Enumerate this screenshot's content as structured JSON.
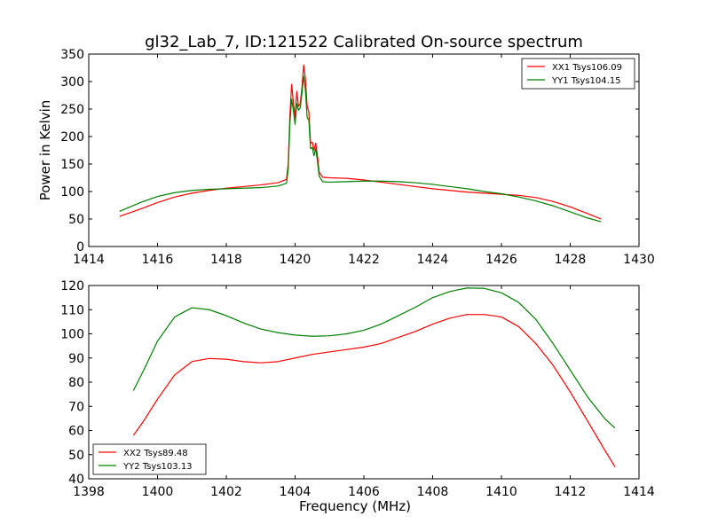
{
  "title": "gl32_Lab_7, ID:121522 Calibrated On-source spectrum",
  "colors": {
    "xx": "#ff0000",
    "yy": "#008000"
  },
  "chart_data": [
    {
      "type": "line",
      "title": "gl32_Lab_7, ID:121522 Calibrated On-source spectrum",
      "xlabel": "",
      "ylabel": "Power in Kelvin",
      "xlim": [
        1414,
        1430
      ],
      "ylim": [
        0,
        350
      ],
      "xticks": [
        1414,
        1416,
        1418,
        1420,
        1422,
        1424,
        1426,
        1428,
        1430
      ],
      "yticks": [
        0,
        50,
        100,
        150,
        200,
        250,
        300,
        350
      ],
      "grid": false,
      "legend_position": "top-right",
      "series": [
        {
          "name": "XX1 Tsys106.09",
          "color": "#ff0000",
          "x": [
            1414.9,
            1415.5,
            1416.0,
            1416.5,
            1417.0,
            1417.5,
            1418.0,
            1418.5,
            1419.0,
            1419.5,
            1419.75,
            1419.8,
            1419.85,
            1419.9,
            1419.95,
            1420.0,
            1420.05,
            1420.1,
            1420.15,
            1420.2,
            1420.25,
            1420.3,
            1420.35,
            1420.4,
            1420.45,
            1420.5,
            1420.55,
            1420.6,
            1420.65,
            1420.7,
            1420.8,
            1421.0,
            1421.5,
            1422.0,
            1422.5,
            1423.0,
            1423.5,
            1424.0,
            1424.5,
            1425.0,
            1425.5,
            1426.0,
            1426.5,
            1427.0,
            1427.5,
            1428.0,
            1428.5,
            1428.9
          ],
          "values": [
            55,
            68,
            80,
            90,
            97,
            102,
            106,
            109,
            112,
            116,
            122,
            150,
            240,
            295,
            262,
            235,
            282,
            255,
            260,
            290,
            330,
            305,
            255,
            245,
            188,
            190,
            175,
            188,
            165,
            135,
            126,
            125,
            124,
            121,
            117,
            113,
            109,
            105,
            102,
            99,
            97,
            95,
            93,
            89,
            82,
            72,
            60,
            50
          ]
        },
        {
          "name": "YY1 Tsys104.15",
          "color": "#008000",
          "x": [
            1414.9,
            1415.5,
            1416.0,
            1416.5,
            1417.0,
            1417.5,
            1418.0,
            1418.5,
            1419.0,
            1419.5,
            1419.75,
            1419.8,
            1419.85,
            1419.9,
            1419.95,
            1420.0,
            1420.05,
            1420.1,
            1420.15,
            1420.2,
            1420.25,
            1420.3,
            1420.35,
            1420.4,
            1420.45,
            1420.5,
            1420.55,
            1420.6,
            1420.65,
            1420.7,
            1420.8,
            1421.0,
            1421.5,
            1422.0,
            1422.5,
            1423.0,
            1423.5,
            1424.0,
            1424.5,
            1425.0,
            1425.5,
            1426.0,
            1426.5,
            1427.0,
            1427.5,
            1428.0,
            1428.5,
            1428.9
          ],
          "values": [
            64,
            80,
            91,
            98,
            102,
            104,
            105,
            106,
            107,
            110,
            115,
            140,
            225,
            268,
            248,
            222,
            260,
            248,
            252,
            280,
            310,
            285,
            235,
            230,
            178,
            180,
            165,
            178,
            155,
            128,
            118,
            117,
            118,
            119,
            119,
            118,
            116,
            113,
            109,
            105,
            100,
            96,
            90,
            83,
            74,
            63,
            52,
            45
          ]
        }
      ]
    },
    {
      "type": "line",
      "title": "",
      "xlabel": "Frequency (MHz)",
      "ylabel": "",
      "xlim": [
        1398,
        1414
      ],
      "ylim": [
        40,
        120
      ],
      "xticks": [
        1398,
        1400,
        1402,
        1404,
        1406,
        1408,
        1410,
        1412,
        1414
      ],
      "yticks": [
        40,
        50,
        60,
        70,
        80,
        90,
        100,
        110,
        120
      ],
      "grid": false,
      "legend_position": "bottom-left",
      "series": [
        {
          "name": "XX2 Tsys89.48",
          "color": "#ff0000",
          "x": [
            1399.3,
            1399.6,
            1400.0,
            1400.5,
            1401.0,
            1401.5,
            1402.0,
            1402.5,
            1403.0,
            1403.5,
            1404.0,
            1404.5,
            1405.0,
            1405.5,
            1406.0,
            1406.5,
            1407.0,
            1407.5,
            1408.0,
            1408.5,
            1409.0,
            1409.5,
            1410.0,
            1410.5,
            1411.0,
            1411.5,
            1412.0,
            1412.5,
            1413.0,
            1413.3
          ],
          "values": [
            58,
            64,
            73,
            83,
            88.5,
            89.8,
            89.5,
            88.5,
            88,
            88.5,
            90,
            91.5,
            92.5,
            93.5,
            94.5,
            96,
            98.5,
            101,
            104,
            106.5,
            108,
            108,
            107,
            103,
            96,
            87,
            76,
            64,
            52,
            45
          ]
        },
        {
          "name": "YY2 Tsys103.13",
          "color": "#008000",
          "x": [
            1399.3,
            1399.6,
            1400.0,
            1400.5,
            1401.0,
            1401.5,
            1402.0,
            1402.5,
            1403.0,
            1403.5,
            1404.0,
            1404.5,
            1405.0,
            1405.5,
            1406.0,
            1406.5,
            1407.0,
            1407.5,
            1408.0,
            1408.5,
            1409.0,
            1409.5,
            1410.0,
            1410.5,
            1411.0,
            1411.5,
            1412.0,
            1412.5,
            1413.0,
            1413.3
          ],
          "values": [
            76.5,
            85,
            97,
            107,
            110.8,
            110,
            107.5,
            104.5,
            102,
            100.5,
            99.5,
            99,
            99.2,
            100,
            101.5,
            104,
            107.5,
            111,
            115,
            117.5,
            119,
            118.8,
            117,
            113,
            106,
            96,
            85,
            74,
            65,
            61
          ]
        }
      ]
    }
  ]
}
